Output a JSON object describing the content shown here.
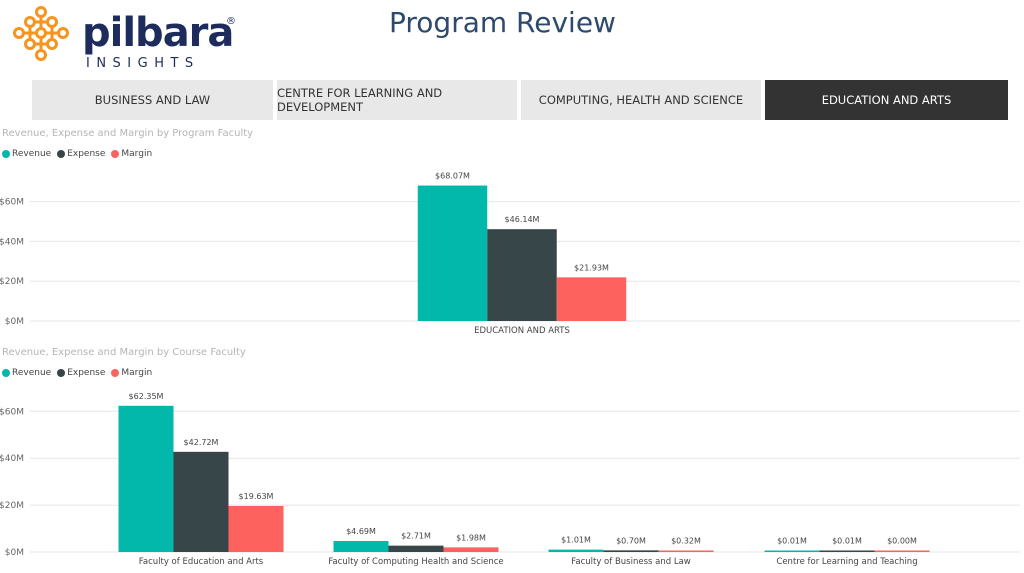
{
  "header": {
    "brand_name": "pilbara",
    "brand_registered": "®",
    "brand_subtitle": "INSIGHTS",
    "page_title": "Program Review"
  },
  "tabs": [
    {
      "label": "BUSINESS AND LAW",
      "active": false
    },
    {
      "label": "CENTRE FOR LEARNING AND DEVELOPMENT",
      "active": false
    },
    {
      "label": "COMPUTING, HEALTH AND SCIENCE",
      "active": false
    },
    {
      "label": "EDUCATION AND ARTS",
      "active": true
    }
  ],
  "colors": {
    "revenue": "#01b8aa",
    "expense": "#374649",
    "margin": "#fd625e",
    "tab_active": "#333333",
    "tab_inactive": "#e8e8e8"
  },
  "chart_data": [
    {
      "type": "bar",
      "title": "Revenue, Expense and Margin by Program Faculty",
      "legend": [
        "Revenue",
        "Expense",
        "Margin"
      ],
      "legend_position": "top-left",
      "categories": [
        "EDUCATION AND ARTS"
      ],
      "series": [
        {
          "name": "Revenue",
          "values": [
            68.07
          ],
          "labels": [
            "$68.07M"
          ]
        },
        {
          "name": "Expense",
          "values": [
            46.14
          ],
          "labels": [
            "$46.14M"
          ]
        },
        {
          "name": "Margin",
          "values": [
            21.93
          ],
          "labels": [
            "$21.93M"
          ]
        }
      ],
      "yticks": [
        "$0M",
        "$20M",
        "$40M",
        "$60M"
      ],
      "ylim": [
        0,
        70
      ],
      "grid": true
    },
    {
      "type": "bar",
      "title": "Revenue, Expense and Margin by Course Faculty",
      "legend": [
        "Revenue",
        "Expense",
        "Margin"
      ],
      "legend_position": "top-left",
      "categories": [
        "Faculty of Education and Arts",
        "Faculty of Computing Health and Science",
        "Faculty of Business and Law",
        "Centre for Learning and Teaching"
      ],
      "series": [
        {
          "name": "Revenue",
          "values": [
            62.35,
            4.69,
            1.01,
            0.01
          ],
          "labels": [
            "$62.35M",
            "$4.69M",
            "$1.01M",
            "$0.01M"
          ]
        },
        {
          "name": "Expense",
          "values": [
            42.72,
            2.71,
            0.7,
            0.01
          ],
          "labels": [
            "$42.72M",
            "$2.71M",
            "$0.70M",
            "$0.01M"
          ]
        },
        {
          "name": "Margin",
          "values": [
            19.63,
            1.98,
            0.32,
            0.0
          ],
          "labels": [
            "$19.63M",
            "$1.98M",
            "$0.32M",
            "$0.00M"
          ]
        }
      ],
      "yticks": [
        "$0M",
        "$20M",
        "$40M",
        "$60M"
      ],
      "ylim": [
        0,
        65
      ],
      "grid": true
    }
  ]
}
